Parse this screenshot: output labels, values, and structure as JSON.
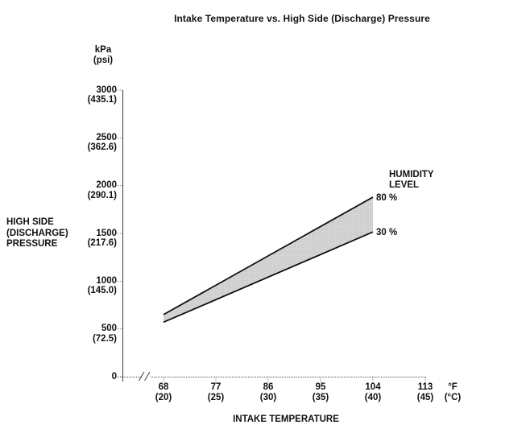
{
  "title": "Intake Temperature vs. High Side (Discharge) Pressure",
  "y_axis": {
    "unit_line1": "kPa",
    "unit_line2": "(psi)",
    "title_line1": "HIGH SIDE",
    "title_line2": "(DISCHARGE)",
    "title_line3": "PRESSURE",
    "ticks": [
      {
        "value": 3000,
        "label": "3000",
        "sublabel": "(435.1)"
      },
      {
        "value": 2500,
        "label": "2500",
        "sublabel": "(362.6)"
      },
      {
        "value": 2000,
        "label": "2000",
        "sublabel": "(290.1)"
      },
      {
        "value": 1500,
        "label": "1500",
        "sublabel": "(217.6)"
      },
      {
        "value": 1000,
        "label": "1000",
        "sublabel": "(145.0)"
      },
      {
        "value": 500,
        "label": "500",
        "sublabel": "(72.5)"
      },
      {
        "value": 0,
        "label": "0",
        "sublabel": ""
      }
    ]
  },
  "x_axis": {
    "title": "INTAKE TEMPERATURE",
    "unit_line1": "°F",
    "unit_line2": "(°C)",
    "has_axis_break": true,
    "ticks": [
      {
        "value": 68,
        "label": "68",
        "sublabel": "(20)"
      },
      {
        "value": 77,
        "label": "77",
        "sublabel": "(25)"
      },
      {
        "value": 86,
        "label": "86",
        "sublabel": "(30)"
      },
      {
        "value": 95,
        "label": "95",
        "sublabel": "(35)"
      },
      {
        "value": 104,
        "label": "104",
        "sublabel": "(40)"
      },
      {
        "value": 113,
        "label": "113",
        "sublabel": "(45)"
      }
    ]
  },
  "legend": {
    "title_line1": "HUMIDITY",
    "title_line2": "LEVEL",
    "upper_label": "80 %",
    "lower_label": "30 %"
  },
  "chart_data": {
    "type": "area",
    "title": "Intake Temperature vs. High Side (Discharge) Pressure",
    "xlabel": "INTAKE TEMPERATURE",
    "ylabel": "HIGH SIDE (DISCHARGE) PRESSURE",
    "x_unit": "°F (°C)",
    "y_unit": "kPa (psi)",
    "xlim": [
      68,
      113
    ],
    "ylim": [
      0,
      3000
    ],
    "grid": false,
    "x_axis_break_before_first_tick": true,
    "x": [
      68,
      104
    ],
    "series": [
      {
        "name": "80 %",
        "humidity_percent": 80,
        "values": [
          650,
          1880
        ]
      },
      {
        "name": "30 %",
        "humidity_percent": 30,
        "values": [
          570,
          1515
        ]
      }
    ],
    "band_between_series": true,
    "legend_title": "HUMIDITY LEVEL",
    "legend_position": "right-of-band"
  },
  "colors": {
    "background": "#ffffff",
    "text": "#111111",
    "band_fill": "#d6d6d6",
    "band_dot": "#b5b5b5",
    "band_edge_line": "#111111",
    "axis_line": "#3c3c3c",
    "tick_line": "#8f8f8f"
  }
}
